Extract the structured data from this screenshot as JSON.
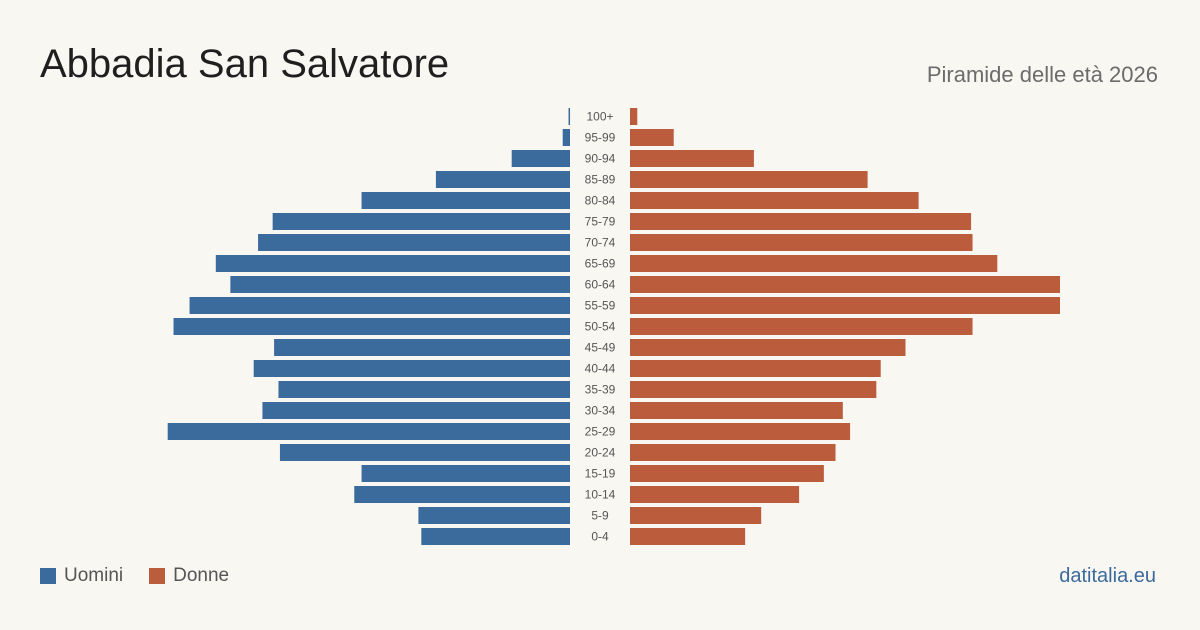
{
  "header": {
    "title": "Abbadia San Salvatore",
    "subtitle": "Piramide delle età 2026"
  },
  "footer": {
    "brand": "datitalia.eu"
  },
  "colors": {
    "men": "#3b6a9c",
    "women": "#bb5d3c",
    "label": "#555555"
  },
  "chart_data": {
    "type": "bar",
    "orientation": "horizontal",
    "style": "population-pyramid",
    "title": "Abbadia San Salvatore",
    "subtitle": "Piramide delle età 2026",
    "categories": [
      "100+",
      "95-99",
      "90-94",
      "85-89",
      "80-84",
      "75-79",
      "70-74",
      "65-69",
      "60-64",
      "55-59",
      "50-54",
      "45-49",
      "40-44",
      "35-39",
      "30-34",
      "25-29",
      "20-24",
      "15-19",
      "10-14",
      "5-9",
      "0-4"
    ],
    "series": [
      {
        "name": "Uomini",
        "values": [
          1,
          5,
          40,
          92,
          143,
          204,
          214,
          243,
          233,
          261,
          272,
          203,
          217,
          200,
          211,
          276,
          199,
          143,
          148,
          104,
          102
        ]
      },
      {
        "name": "Donne",
        "values": [
          5,
          30,
          85,
          163,
          198,
          234,
          235,
          252,
          295,
          295,
          235,
          189,
          172,
          169,
          146,
          151,
          141,
          133,
          116,
          90,
          79
        ]
      }
    ],
    "legend": {
      "position": "bottom-left",
      "entries": [
        "Uomini",
        "Donne"
      ]
    },
    "axes_visible": false,
    "grid": false
  }
}
